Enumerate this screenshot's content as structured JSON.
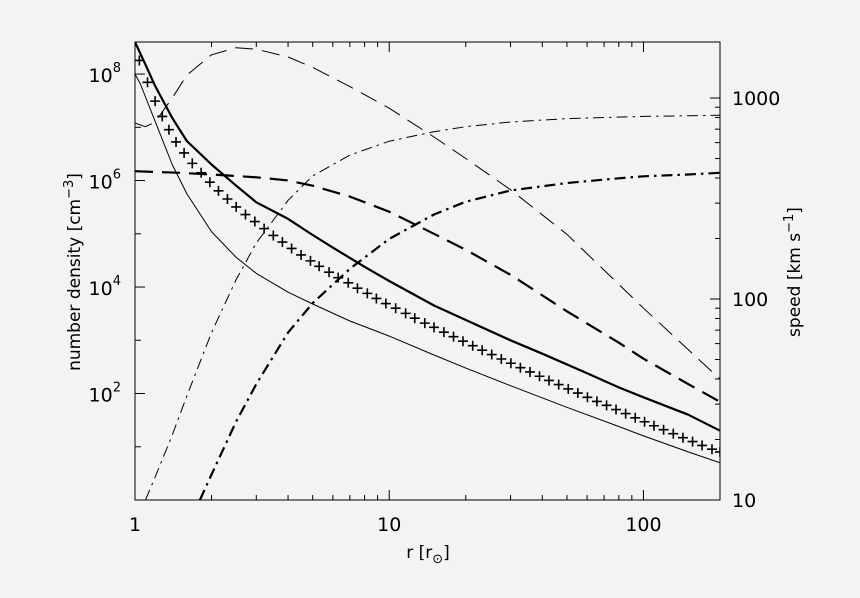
{
  "chart_data": {
    "type": "line",
    "xlabel": "r [r",
    "xlabel_sub": "⊙",
    "xlabel_close": "]",
    "ylabel_left": "number density [cm",
    "ylabel_left_sup": "−3",
    "ylabel_left_close": "]",
    "ylabel_right": "speed [km s",
    "ylabel_right_sup": "−1",
    "ylabel_right_close": "]",
    "x_scale": "log",
    "xlim": [
      1,
      200
    ],
    "ylim_left": [
      1,
      400000000
    ],
    "ylim_left_scale": "log",
    "ylim_right": [
      10,
      1900
    ],
    "ylim_right_scale": "log",
    "grid": false,
    "legend": "none",
    "x_ticks": [
      {
        "value": 1,
        "label": "1"
      },
      {
        "value": 10,
        "label": "10"
      },
      {
        "value": 100,
        "label": "100"
      }
    ],
    "y_left_ticks": [
      {
        "value": 100,
        "base": "10",
        "exp": "2"
      },
      {
        "value": 10000,
        "base": "10",
        "exp": "4"
      },
      {
        "value": 1000000,
        "base": "10",
        "exp": "6"
      },
      {
        "value": 100000000,
        "base": "10",
        "exp": "8"
      }
    ],
    "y_right_ticks": [
      {
        "value": 10,
        "label": "10"
      },
      {
        "value": 100,
        "label": "100"
      },
      {
        "value": 1000,
        "label": "1000"
      }
    ],
    "series": [
      {
        "axis": "left",
        "style": "thick-solid",
        "x": [
          1.0,
          1.1,
          1.2,
          1.4,
          1.6,
          2.0,
          2.5,
          3.0,
          4.0,
          5.0,
          6.0,
          8.0,
          10,
          15,
          20,
          30,
          40,
          60,
          80,
          100,
          150,
          200
        ],
        "y": [
          400000000,
          150000000,
          60000000,
          15000000,
          5500000,
          2000000,
          800000,
          390000,
          190000,
          95000,
          55000,
          24000,
          13000,
          4500,
          2400,
          1000,
          560,
          240,
          130,
          85,
          40,
          20
        ]
      },
      {
        "axis": "left",
        "style": "thin-solid",
        "x": [
          1.0,
          1.05,
          1.1,
          1.2,
          1.4,
          1.6,
          2.0,
          2.5,
          3.0,
          4.0,
          5.0,
          7.0,
          10,
          15,
          20,
          30,
          50,
          80,
          100,
          150,
          200
        ],
        "y": [
          100000000,
          65000000,
          37000000,
          13000000,
          2000000,
          560000,
          110000,
          36000,
          18000,
          8000,
          4800,
          2300,
          1200,
          530,
          300,
          140,
          55,
          24,
          16,
          8,
          5
        ]
      },
      {
        "axis": "left",
        "style": "thick-dashed",
        "x": [
          1.0,
          1.5,
          2.0,
          3.0,
          4.0,
          5.0,
          7.0,
          10,
          15,
          20,
          30,
          50,
          80,
          100,
          150,
          200
        ],
        "y": [
          1500000,
          1400000,
          1300000,
          1150000,
          1000000,
          800000,
          500000,
          260000,
          100000,
          50000,
          17000,
          3500,
          900,
          450,
          150,
          70
        ]
      },
      {
        "axis": "left",
        "style": "thick-dashdot",
        "x": [
          1.8,
          2.0,
          2.5,
          3.0,
          4.0,
          5.0,
          7.0,
          10,
          15,
          20,
          30,
          50,
          80,
          100,
          150,
          200
        ],
        "y": [
          1,
          3,
          30,
          150,
          1400,
          5000,
          22000,
          80000,
          230000,
          400000,
          650000,
          900000,
          1100000,
          1200000,
          1300000,
          1400000
        ]
      },
      {
        "axis": "right",
        "style": "thin-dashed",
        "x": [
          1.0,
          1.1,
          1.2,
          1.4,
          1.6,
          2.0,
          2.5,
          3.0,
          4.0,
          5.0,
          7.0,
          10,
          15,
          20,
          30,
          50,
          100,
          150,
          200
        ],
        "y": [
          750,
          720,
          760,
          1000,
          1300,
          1640,
          1780,
          1750,
          1600,
          1420,
          1140,
          890,
          640,
          500,
          350,
          210,
          90,
          56,
          40
        ]
      },
      {
        "axis": "right",
        "style": "thin-dashdot",
        "x": [
          1.1,
          1.2,
          1.4,
          1.6,
          2.0,
          2.5,
          3.0,
          4.0,
          5.0,
          7.0,
          10,
          15,
          20,
          30,
          50,
          100,
          200
        ],
        "y": [
          10,
          13,
          21,
          33,
          68,
          125,
          190,
          310,
          410,
          520,
          610,
          680,
          720,
          760,
          790,
          810,
          820
        ]
      },
      {
        "axis": "left",
        "style": "plus-markers",
        "x": [
          1.04,
          1.12,
          1.2,
          1.28,
          1.36,
          1.45,
          1.56,
          1.68,
          1.82,
          1.97,
          2.13,
          2.31,
          2.5,
          2.72,
          2.96,
          3.22,
          3.5,
          3.8,
          4.13,
          4.5,
          4.9,
          5.3,
          5.8,
          6.3,
          6.9,
          7.5,
          8.2,
          8.9,
          9.7,
          10.6,
          11.6,
          12.6,
          13.8,
          15.0,
          16.4,
          17.9,
          19.5,
          21.3,
          23.2,
          25.3,
          27.6,
          30.1,
          32.8,
          35.8,
          39.0,
          42.5,
          46.4,
          50.6,
          55.2,
          60.2,
          65.6,
          71.6,
          78.0,
          85.1,
          92.8,
          101,
          110,
          120,
          131,
          143,
          156,
          170,
          186,
          200
        ],
        "y": [
          180000000,
          70000000,
          31000000,
          16000000,
          9000000,
          5300000,
          3300000,
          2100000,
          1400000,
          930000,
          640000,
          450000,
          320000,
          230000,
          170000,
          125000,
          93000,
          70000,
          53000,
          40000,
          31000,
          24500,
          19000,
          15000,
          12000,
          9500,
          7600,
          6100,
          4900,
          4000,
          3200,
          2600,
          2100,
          1750,
          1420,
          1170,
          960,
          790,
          650,
          540,
          445,
          370,
          305,
          254,
          211,
          176,
          147,
          122,
          102,
          85,
          71,
          60,
          50,
          42,
          35,
          29.5,
          24.8,
          20.9,
          17.6,
          14.8,
          12.5,
          10.6,
          9,
          8
        ]
      }
    ]
  }
}
